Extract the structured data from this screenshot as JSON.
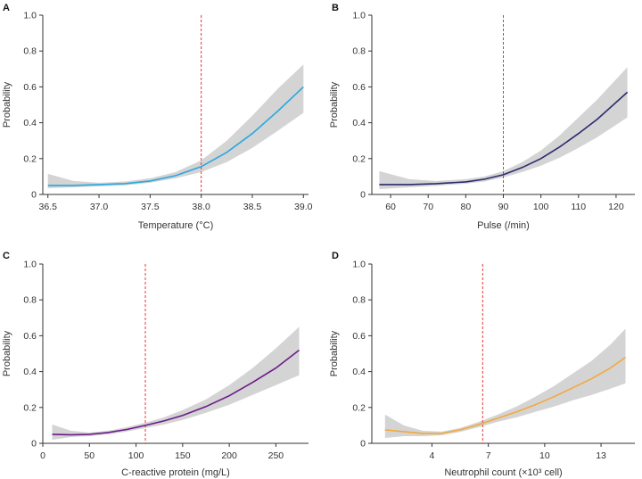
{
  "chart_data": [
    {
      "panel": "A",
      "type": "line",
      "xlabel": "Temperature (°C)",
      "ylabel": "Probability",
      "xlim": [
        36.45,
        39.05
      ],
      "ylim": [
        0,
        1.0
      ],
      "xticks": [
        36.5,
        37.0,
        37.5,
        38.0,
        38.5,
        39.0
      ],
      "xtick_labels": [
        "36.5",
        "37.0",
        "37.5",
        "38.0",
        "38.5",
        "39.0"
      ],
      "yticks": [
        0,
        0.2,
        0.4,
        0.6,
        0.8,
        1.0
      ],
      "ytick_labels": [
        "0",
        "0.2",
        "0.4",
        "0.6",
        "0.8",
        "1.0"
      ],
      "cutoff": 38.0,
      "color": "#29a8df",
      "x": [
        36.5,
        36.75,
        37.0,
        37.25,
        37.5,
        37.75,
        38.0,
        38.25,
        38.5,
        38.75,
        39.0
      ],
      "y": [
        0.05,
        0.05,
        0.055,
        0.06,
        0.075,
        0.105,
        0.155,
        0.235,
        0.34,
        0.465,
        0.6
      ],
      "lower": [
        0.035,
        0.04,
        0.045,
        0.05,
        0.065,
        0.09,
        0.125,
        0.18,
        0.26,
        0.355,
        0.455
      ],
      "upper": [
        0.115,
        0.075,
        0.065,
        0.072,
        0.09,
        0.125,
        0.19,
        0.3,
        0.44,
        0.59,
        0.725
      ]
    },
    {
      "panel": "B",
      "type": "line",
      "xlabel": "Pulse (/min)",
      "ylabel": "Probability",
      "xlim": [
        55,
        125
      ],
      "ylim": [
        0,
        1.0
      ],
      "xticks": [
        60,
        70,
        80,
        90,
        100,
        110,
        120
      ],
      "xtick_labels": [
        "60",
        "70",
        "80",
        "90",
        "100",
        "110",
        "120"
      ],
      "yticks": [
        0,
        0.2,
        0.4,
        0.6,
        0.8,
        1.0
      ],
      "ytick_labels": [
        "0",
        "0.2",
        "0.4",
        "0.6",
        "0.8",
        "1.0"
      ],
      "cutoff": 90,
      "color": "#2b2a6e",
      "x": [
        57,
        65,
        72,
        80,
        85,
        90,
        95,
        100,
        105,
        110,
        115,
        123
      ],
      "y": [
        0.055,
        0.055,
        0.06,
        0.07,
        0.085,
        0.11,
        0.15,
        0.2,
        0.265,
        0.34,
        0.42,
        0.57
      ],
      "lower": [
        0.03,
        0.04,
        0.048,
        0.06,
        0.072,
        0.095,
        0.125,
        0.16,
        0.205,
        0.26,
        0.32,
        0.43
      ],
      "upper": [
        0.13,
        0.085,
        0.075,
        0.085,
        0.1,
        0.13,
        0.18,
        0.245,
        0.33,
        0.43,
        0.53,
        0.71
      ]
    },
    {
      "panel": "C",
      "type": "line",
      "xlabel": "C-reactive protein (mg/L)",
      "ylabel": "Probability",
      "xlim": [
        0,
        285
      ],
      "ylim": [
        0,
        1.0
      ],
      "xticks": [
        0,
        50,
        100,
        150,
        200,
        250
      ],
      "xtick_labels": [
        "0",
        "50",
        "100",
        "150",
        "200",
        "250"
      ],
      "yticks": [
        0,
        0.2,
        0.4,
        0.6,
        0.8,
        1.0
      ],
      "ytick_labels": [
        "0",
        "0.2",
        "0.4",
        "0.6",
        "0.8",
        "1.0"
      ],
      "cutoff": 110,
      "color": "#6a1b8a",
      "x": [
        10,
        30,
        50,
        70,
        90,
        110,
        130,
        150,
        175,
        200,
        225,
        250,
        275
      ],
      "y": [
        0.05,
        0.048,
        0.05,
        0.06,
        0.077,
        0.1,
        0.125,
        0.155,
        0.205,
        0.265,
        0.34,
        0.42,
        0.52
      ],
      "lower": [
        0.02,
        0.035,
        0.04,
        0.05,
        0.065,
        0.085,
        0.105,
        0.13,
        0.17,
        0.215,
        0.27,
        0.325,
        0.38
      ],
      "upper": [
        0.105,
        0.07,
        0.06,
        0.07,
        0.09,
        0.115,
        0.145,
        0.185,
        0.245,
        0.325,
        0.42,
        0.53,
        0.65
      ]
    },
    {
      "panel": "D",
      "type": "line",
      "xlabel": "Neutrophil count (×10³ cell)",
      "ylabel": "Probability",
      "xlim": [
        0.8,
        14.8
      ],
      "ylim": [
        0,
        1.0
      ],
      "xticks": [
        4,
        7,
        10,
        13
      ],
      "xtick_labels": [
        "4",
        "7",
        "10",
        "13"
      ],
      "yticks": [
        0,
        0.2,
        0.4,
        0.6,
        0.8,
        1.0
      ],
      "ytick_labels": [
        "0",
        "0.2",
        "0.4",
        "0.6",
        "0.8",
        "1.0"
      ],
      "cutoff": 6.7,
      "color": "#f2a93b",
      "x": [
        1.5,
        2.5,
        3.5,
        4.5,
        5.5,
        6.5,
        7.5,
        8.5,
        9.5,
        10.5,
        11.5,
        12.5,
        13.5,
        14.3
      ],
      "y": [
        0.075,
        0.065,
        0.055,
        0.055,
        0.075,
        0.105,
        0.14,
        0.175,
        0.215,
        0.26,
        0.31,
        0.36,
        0.42,
        0.48
      ],
      "lower": [
        0.03,
        0.04,
        0.04,
        0.045,
        0.063,
        0.09,
        0.12,
        0.145,
        0.175,
        0.205,
        0.24,
        0.27,
        0.305,
        0.335
      ],
      "upper": [
        0.16,
        0.1,
        0.07,
        0.065,
        0.085,
        0.12,
        0.16,
        0.205,
        0.26,
        0.32,
        0.39,
        0.46,
        0.55,
        0.64
      ]
    }
  ]
}
